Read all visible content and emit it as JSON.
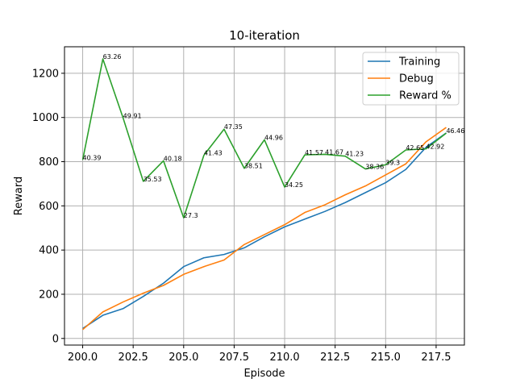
{
  "chart_data": {
    "type": "line",
    "title": "10-iteration",
    "xlabel": "Episode",
    "ylabel": "Reward",
    "xlim": [
      199.1,
      218.9
    ],
    "ylim": [
      -30,
      1320
    ],
    "x_ticks": [
      200.0,
      202.5,
      205.0,
      207.5,
      210.0,
      212.5,
      215.0,
      217.5
    ],
    "x_tick_labels": [
      "200.0",
      "202.5",
      "205.0",
      "207.5",
      "210.0",
      "212.5",
      "215.0",
      "217.5"
    ],
    "y_ticks": [
      0,
      200,
      400,
      600,
      800,
      1000,
      1200
    ],
    "y_tick_labels": [
      "0",
      "200",
      "400",
      "600",
      "800",
      "1000",
      "1200"
    ],
    "grid": true,
    "legend_position": "upper right",
    "x": [
      200,
      201,
      202,
      203,
      204,
      205,
      206,
      207,
      208,
      209,
      210,
      211,
      212,
      213,
      214,
      215,
      216,
      217,
      218
    ],
    "series": [
      {
        "name": "Training",
        "color": "#1f77b4",
        "values": [
          45,
          105,
          135,
          190,
          250,
          325,
          365,
          380,
          410,
          460,
          505,
          540,
          575,
          615,
          660,
          705,
          765,
          865,
          930
        ]
      },
      {
        "name": "Debug",
        "color": "#ff7f0e",
        "values": [
          40,
          120,
          165,
          205,
          240,
          290,
          325,
          355,
          425,
          470,
          515,
          570,
          605,
          650,
          690,
          740,
          790,
          890,
          955
        ]
      },
      {
        "name": "Reward %",
        "color": "#2ca02c",
        "values": [
          808,
          1265,
          998,
          711,
          804,
          546,
          829,
          947,
          770,
          899,
          685,
          831,
          833,
          825,
          767,
          786,
          853,
          858,
          929
        ],
        "data_labels": [
          "40.39",
          "63.26",
          "49.91",
          "35.53",
          "40.18",
          "27.3",
          "41.43",
          "47.35",
          "38.51",
          "44.96",
          "34.25",
          "41.57",
          "41.67",
          "41.23",
          "38.36",
          "39.3",
          "42.65",
          "42.92",
          "46.46"
        ]
      }
    ]
  }
}
